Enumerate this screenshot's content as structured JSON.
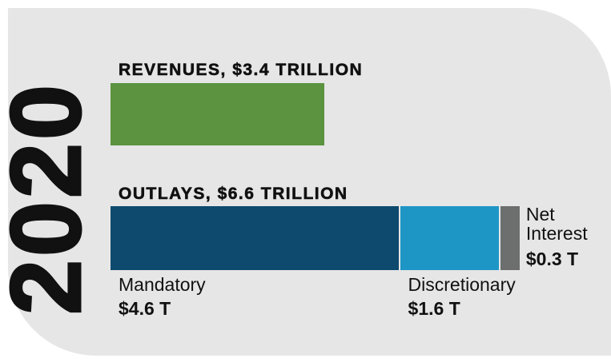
{
  "chart_data": {
    "type": "bar",
    "title": "2020",
    "revenues": {
      "label": "REVENUES, $3.4 TRILLION",
      "value": 3.4,
      "color": "#5b9341"
    },
    "outlays": {
      "label": "OUTLAYS, $6.6 TRILLION",
      "series": [
        {
          "name": "Mandatory",
          "color": "#0d4a6e",
          "values": [
            4.6
          ],
          "value_labels": [
            "$4.6 T"
          ]
        },
        {
          "name": "Discretionary",
          "color": "#1d96c6",
          "values": [
            1.6
          ],
          "value_labels": [
            "$1.6 T"
          ]
        },
        {
          "name": "Net Interest",
          "color": "#6d6e6e",
          "values": [
            0.3
          ],
          "value_labels": [
            "$0.3 T"
          ]
        }
      ]
    }
  }
}
